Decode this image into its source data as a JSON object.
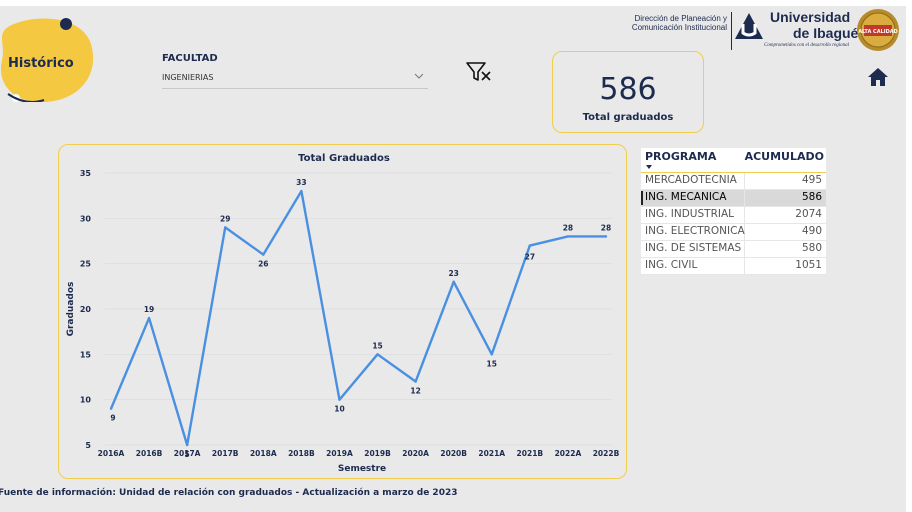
{
  "header": {
    "title": "Histórico",
    "dept_line1": "Dirección de Planeación y",
    "dept_line2": "Comunicación Institucional",
    "university_line1": "Universidad",
    "university_line2": "de Ibagué",
    "slogan": "Comprometidos con el desarrollo regional",
    "seal_text": "ALTA CALIDAD"
  },
  "filter": {
    "label": "FACULTAD",
    "value": "INGENIERIAS"
  },
  "icons": {
    "clear_filter": "clear-filter-icon",
    "home": "home-icon",
    "chevron": "chevron-down-icon",
    "sort": "sort-desc-icon"
  },
  "kpi": {
    "value": "586",
    "label": "Total graduados"
  },
  "chart_data": {
    "type": "line",
    "title": "Total Graduados",
    "xlabel": "Semestre",
    "ylabel": "Graduados",
    "categories": [
      "2016A",
      "2016B",
      "2017A",
      "2017B",
      "2018A",
      "2018B",
      "2019A",
      "2019B",
      "2020A",
      "2020B",
      "2021A",
      "2021B",
      "2022A",
      "2022B"
    ],
    "values": [
      9,
      19,
      5,
      29,
      26,
      33,
      10,
      15,
      12,
      23,
      15,
      27,
      28,
      28
    ],
    "yticks": [
      5,
      10,
      15,
      20,
      25,
      30,
      35
    ],
    "ylim": [
      5,
      35
    ],
    "line_color": "#4a90e2",
    "grid": true
  },
  "table": {
    "col_program": "PROGRAMA",
    "col_accumulated": "ACUMULADO",
    "rows": [
      {
        "program": "MERCADOTECNIA",
        "accumulated": "495",
        "selected": false
      },
      {
        "program": "ING. MECANICA",
        "accumulated": "586",
        "selected": true
      },
      {
        "program": "ING. INDUSTRIAL",
        "accumulated": "2074",
        "selected": false
      },
      {
        "program": "ING. ELECTRONICA",
        "accumulated": "490",
        "selected": false
      },
      {
        "program": "ING. DE SISTEMAS",
        "accumulated": "580",
        "selected": false
      },
      {
        "program": "ING. CIVIL",
        "accumulated": "1051",
        "selected": false
      }
    ]
  },
  "footer": "Fuente de información:  Unidad de relación con graduados - Actualización a marzo de 2023",
  "colors": {
    "accent": "#f2cd4c",
    "navy": "#1d2b4f",
    "background": "#e9e9e9"
  }
}
